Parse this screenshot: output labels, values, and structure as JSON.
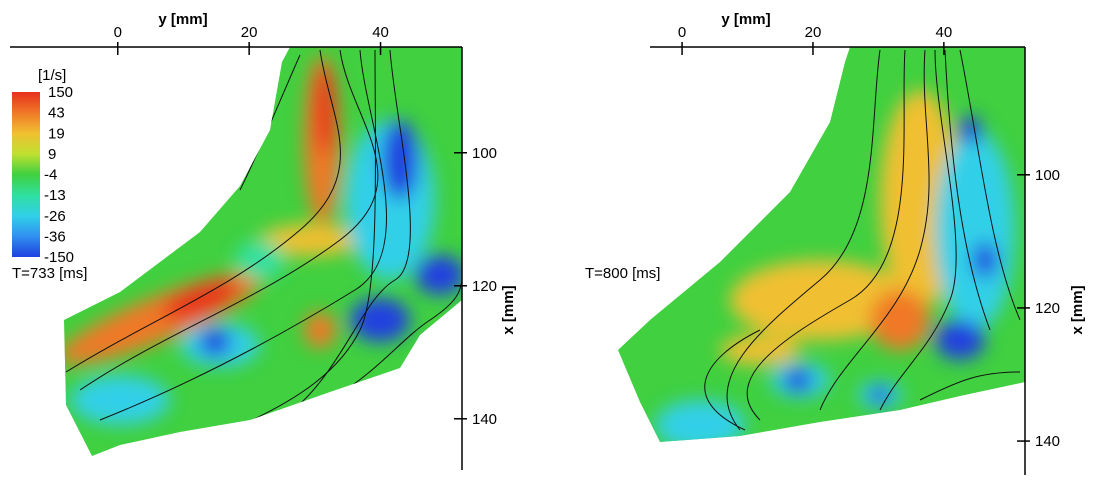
{
  "chart_data": [
    {
      "type": "contour",
      "xlabel": "y [mm]",
      "ylabel": "x [mm]",
      "xlim": [
        -16.4,
        52.4
      ],
      "xticks": [
        0,
        20,
        40
      ],
      "ylim": [
        84.1,
        147.7
      ],
      "yticks": [
        100,
        120,
        140
      ],
      "annotation": "T=733 [ms]",
      "colorbar": {
        "title": "[1/s]",
        "levels": [
          150,
          43,
          19,
          9,
          -4,
          -13,
          -26,
          -36,
          -150
        ],
        "colors": [
          "#e8301c",
          "#f07828",
          "#f0c030",
          "#c0e030",
          "#40d040",
          "#30e0a0",
          "#30d0e8",
          "#3090f0",
          "#2040e0"
        ]
      }
    },
    {
      "type": "contour",
      "xlabel": "y [mm]",
      "ylabel": "x [mm]",
      "xlim": [
        -4.9,
        52.4
      ],
      "xticks": [
        0,
        20,
        40
      ],
      "ylim": [
        80.8,
        145.1
      ],
      "yticks": [
        100,
        120,
        140
      ],
      "annotation": "T=800 [ms]"
    }
  ]
}
